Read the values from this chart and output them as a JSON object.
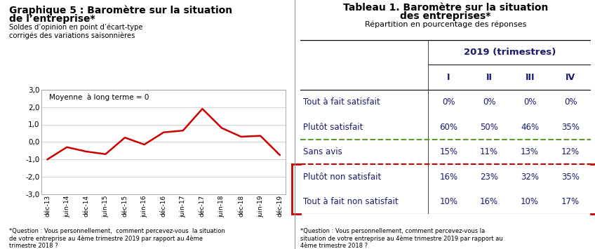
{
  "chart_title_line1": "Graphique 5 : Baromètre sur la situation",
  "chart_title_line2": "de l’entreprise*",
  "chart_subtitle": "Soldes d’opinion en point d’écart-type\ncorrigés des variations saisonnières",
  "chart_annotation": "Moyenne  à long terme = 0",
  "chart_footnote": "*Question : Vous personnellement,  comment percevez-vous  la situation\nde votre entreprise au 4ème trimestre 2019 par rapport au 4ème\ntrimestre 2018 ?",
  "x_labels": [
    "déc-13",
    "juin-14",
    "déc-14",
    "juin-15",
    "déc-15",
    "juin-16",
    "déc-16",
    "juin-17",
    "déc-17",
    "juin-18",
    "déc-18",
    "juin-19",
    "déc-19"
  ],
  "y_values": [
    -1.0,
    -0.3,
    -0.55,
    -0.7,
    0.25,
    -0.15,
    0.55,
    0.65,
    1.9,
    0.8,
    0.3,
    0.35,
    -0.75
  ],
  "ylim": [
    -3.0,
    3.0
  ],
  "yticks": [
    -3.0,
    -2.0,
    -1.0,
    0.0,
    1.0,
    2.0,
    3.0
  ],
  "ytick_labels": [
    "-3,0",
    "-2,0",
    "-1,0",
    "0,0",
    "1,0",
    "2,0",
    "3,0"
  ],
  "line_color": "#cc0000",
  "line_width": 1.8,
  "grid_color": "#cccccc",
  "table_title_line1": "Tableau 1. Baromètre sur la situation",
  "table_title_line2": "des entreprises*",
  "table_subtitle": "Répartition en pourcentage des réponses",
  "table_col_header": "2019 (trimestres)",
  "table_sub_headers": [
    "I",
    "II",
    "III",
    "IV"
  ],
  "table_rows": [
    [
      "Tout à fait satisfait",
      "0%",
      "0%",
      "0%",
      "0%"
    ],
    [
      "Plutôt satisfait",
      "60%",
      "50%",
      "46%",
      "35%"
    ],
    [
      "Sans avis",
      "15%",
      "11%",
      "13%",
      "12%"
    ],
    [
      "Plutôt non satisfait",
      "16%",
      "23%",
      "32%",
      "35%"
    ],
    [
      "Tout à fait non satisfait",
      "10%",
      "16%",
      "10%",
      "17%"
    ]
  ],
  "table_footnote": "*Question : Vous personnellement, comment percevez-vous la\nsituation de votre entreprise au 4ème trimestre 2019 par rapport au\n4ème trimestre 2018 ?",
  "text_color_dark": "#1a1a6e",
  "green_dash_color": "#5a9a2a",
  "red_dash_color": "#cc0000",
  "bg_color": "#ffffff",
  "divider_color": "#999999"
}
